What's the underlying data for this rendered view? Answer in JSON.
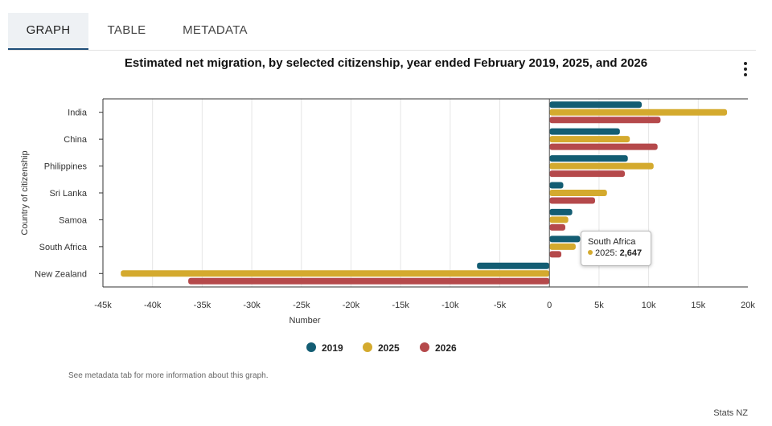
{
  "tabs": [
    {
      "label": "GRAPH",
      "active": true
    },
    {
      "label": "TABLE",
      "active": false
    },
    {
      "label": "METADATA",
      "active": false
    }
  ],
  "footnote": "See metadata tab for more information about this graph.",
  "credit": "Stats NZ",
  "menu_icon": "kebab-menu-icon",
  "tooltip": {
    "title": "South Africa",
    "series": "2025",
    "value_text": "2,647",
    "color": "#d4aa2e"
  },
  "chart_data": {
    "type": "bar",
    "orientation": "horizontal",
    "title": "Estimated net migration, by selected citizenship, year ended February 2019, 2025, and 2026",
    "xlabel": "Number",
    "ylabel": "Country of citizenship",
    "xlim": [
      -45000,
      20000
    ],
    "xticks": [
      -45000,
      -40000,
      -35000,
      -30000,
      -25000,
      -20000,
      -15000,
      -10000,
      -5000,
      0,
      5000,
      10000,
      15000,
      20000
    ],
    "xtick_labels": [
      "-45k",
      "-40k",
      "-35k",
      "-30k",
      "-25k",
      "-20k",
      "-15k",
      "-10k",
      "-5k",
      "0",
      "5k",
      "10k",
      "15k",
      "20k"
    ],
    "grid": "vertical",
    "legend_position": "bottom",
    "categories": [
      "India",
      "China",
      "Philippines",
      "Sri Lanka",
      "Samoa",
      "South Africa",
      "New Zealand"
    ],
    "series": [
      {
        "name": "2019",
        "color": "#135d73",
        "values": [
          9300,
          7100,
          7900,
          1400,
          2300,
          3100,
          -7300
        ]
      },
      {
        "name": "2025",
        "color": "#d4aa2e",
        "values": [
          17900,
          8100,
          10500,
          5800,
          1900,
          2647,
          -43200
        ]
      },
      {
        "name": "2026",
        "color": "#b5494b",
        "values": [
          11200,
          10900,
          7600,
          4600,
          1600,
          1200,
          -36400
        ]
      }
    ]
  }
}
